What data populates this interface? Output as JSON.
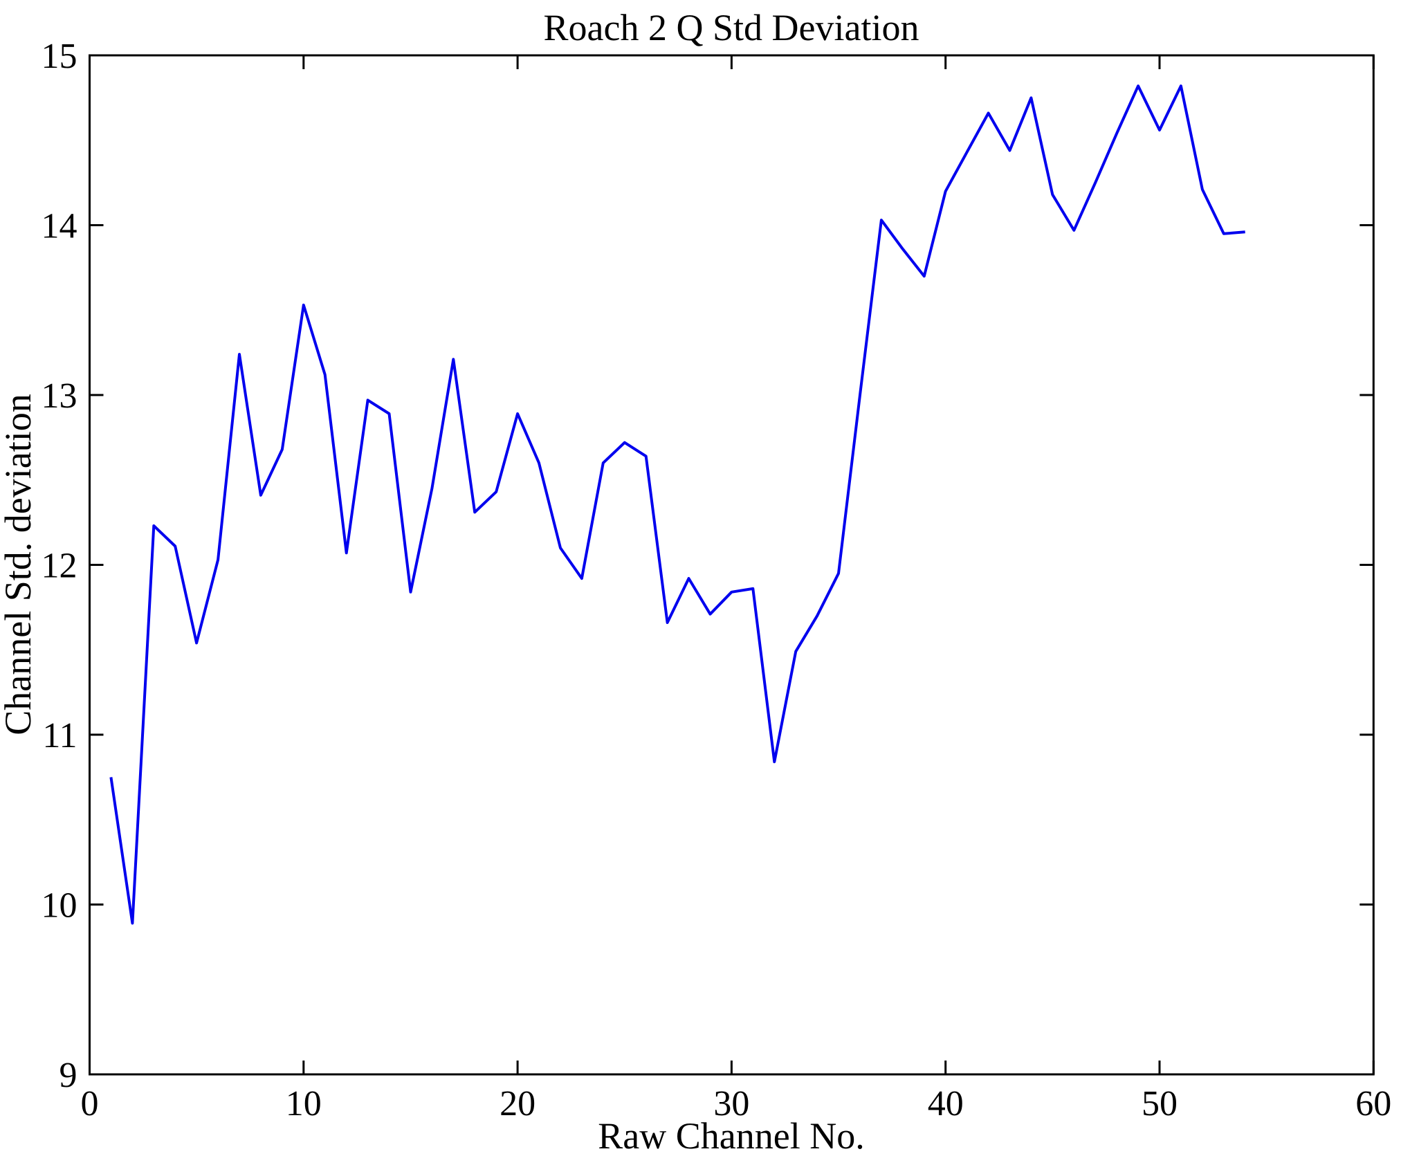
{
  "figure": {
    "background": "#ffffff"
  },
  "chart_data": {
    "type": "line",
    "title": "Roach 2 Q Std Deviation",
    "xlabel": "Raw Channel No.",
    "ylabel": "Channel Std. deviation",
    "xlim": [
      0,
      60
    ],
    "ylim": [
      9,
      15
    ],
    "xticks": [
      0,
      10,
      20,
      30,
      40,
      50,
      60
    ],
    "xtick_labels": [
      "0",
      "10",
      "20",
      "30",
      "40",
      "50",
      "60"
    ],
    "yticks": [
      9,
      10,
      11,
      12,
      13,
      14,
      15
    ],
    "ytick_labels": [
      "9",
      "10",
      "11",
      "12",
      "13",
      "14",
      "15"
    ],
    "grid": false,
    "legend": null,
    "line_color": "#0000ee",
    "axis_color": "#000000",
    "x": [
      1,
      2,
      3,
      4,
      5,
      6,
      7,
      8,
      9,
      10,
      11,
      12,
      13,
      14,
      15,
      16,
      17,
      18,
      19,
      20,
      21,
      22,
      23,
      24,
      25,
      26,
      27,
      28,
      29,
      30,
      31,
      32,
      33,
      34,
      35,
      36,
      37,
      38,
      39,
      40,
      41,
      42,
      43,
      44,
      45,
      46,
      47,
      48,
      49,
      50,
      51,
      52,
      53,
      54
    ],
    "values": [
      10.75,
      9.89,
      12.23,
      12.11,
      11.54,
      12.03,
      13.24,
      12.41,
      12.68,
      13.53,
      13.12,
      12.07,
      12.97,
      12.89,
      11.84,
      12.45,
      13.21,
      12.31,
      12.43,
      12.89,
      12.6,
      12.1,
      11.92,
      12.6,
      12.72,
      12.64,
      11.66,
      11.92,
      11.71,
      11.84,
      11.86,
      10.84,
      11.49,
      11.7,
      11.95,
      13.0,
      14.03,
      13.86,
      13.7,
      14.2,
      14.43,
      14.66,
      14.44,
      14.75,
      14.18,
      13.97,
      14.25,
      14.54,
      14.82,
      14.56,
      14.82,
      14.21,
      13.95,
      13.96
    ]
  }
}
